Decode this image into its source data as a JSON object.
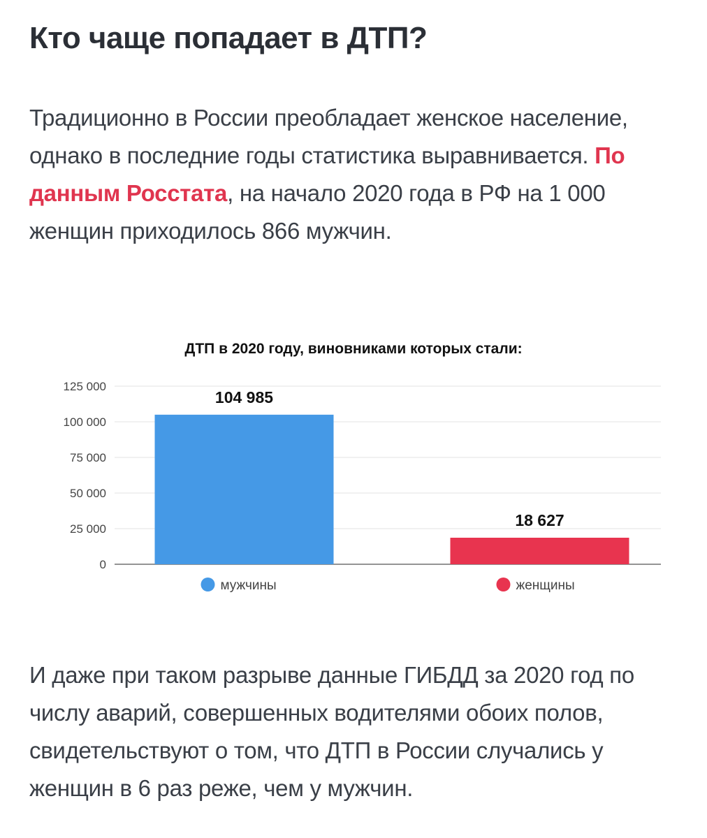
{
  "heading": "Кто чаще попадает в ДТП?",
  "intro": {
    "before_link": "Традиционно в России преобладает женское население, однако в последние годы статистика выравнивается. ",
    "link_text": "По данным Росстата",
    "after_link": ", на начало 2020 года в РФ на 1 000 женщин приходилось 866 мужчин.",
    "link_color": "#e0354f"
  },
  "chart_data": {
    "type": "bar",
    "title": "ДТП в 2020 году, виновниками которых стали:",
    "categories": [
      "мужчины",
      "женщины"
    ],
    "values": [
      104985,
      18627
    ],
    "value_labels": [
      "104 985",
      "18 627"
    ],
    "colors": [
      "#4599e6",
      "#e8344f"
    ],
    "ylim": [
      0,
      125000
    ],
    "yticks": [
      0,
      25000,
      50000,
      75000,
      100000,
      125000
    ],
    "ytick_labels": [
      "0",
      "25 000",
      "50 000",
      "75 000",
      "100 000",
      "125 000"
    ],
    "grid": true,
    "legend": "bottom",
    "xlabel": "",
    "ylabel": ""
  },
  "conclusion": "И даже при таком разрыве данные ГИБДД за 2020 год по числу аварий, совершенных водителями обоих полов, свидетельствуют о том, что ДТП в России случались у женщин в 6 раз реже, чем у мужчин."
}
